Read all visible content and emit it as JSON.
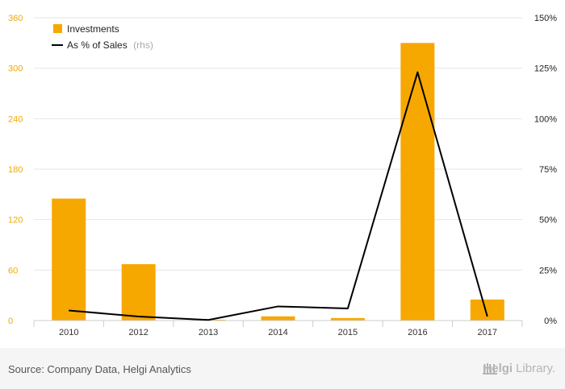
{
  "chart_data": {
    "type": "bar+line",
    "categories": [
      "2010",
      "2012",
      "2013",
      "2014",
      "2015",
      "2016",
      "2017"
    ],
    "series": [
      {
        "name": "Investments",
        "type": "bar",
        "axis": "left",
        "color": "#f7a800",
        "values": [
          145,
          67,
          1,
          5,
          3,
          330,
          25
        ]
      },
      {
        "name": "As % of Sales",
        "name_suffix": "(rhs)",
        "type": "line",
        "axis": "right",
        "color": "#000000",
        "values": [
          5,
          2,
          0.3,
          7,
          6,
          123,
          2
        ]
      }
    ],
    "y_left": {
      "min": 0,
      "max": 360,
      "ticks": [
        "0",
        "60",
        "120",
        "180",
        "240",
        "300",
        "360"
      ]
    },
    "y_right": {
      "min": 0,
      "max": 150,
      "ticks": [
        "0%",
        "25%",
        "50%",
        "75%",
        "100%",
        "125%",
        "150%"
      ]
    },
    "grid": true,
    "legend_position": "top-left"
  },
  "footer": {
    "source": "Source: Company Data, Helgi Analytics",
    "brand_part1": "Helgi",
    "brand_part2": "Library."
  }
}
